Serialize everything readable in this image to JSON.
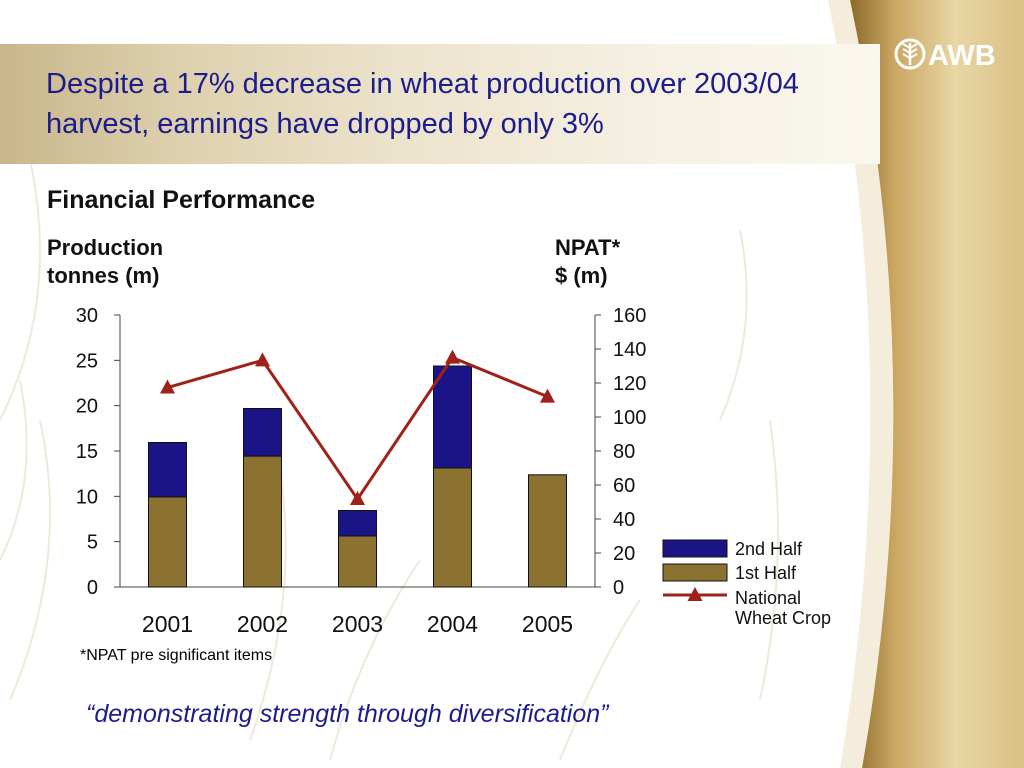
{
  "slide": {
    "headline": "Despite a 17% decrease in wheat production over 2003/04 harvest, earnings have dropped by only 3%",
    "logo_text": "AWB",
    "footnote": "*NPAT pre significant items",
    "tagline": "“demonstrating strength through diversification”"
  },
  "colors": {
    "headline": "#1c1c8c",
    "second_half": "#1a1486",
    "first_half": "#8b7230",
    "line": "#a0201a",
    "gold_swoosh": "#c9a560"
  },
  "chart_data": {
    "type": "bar",
    "title": "Financial Performance",
    "left_axis_label": [
      "Production",
      "tonnes (m)"
    ],
    "right_axis_label": [
      "NPAT*",
      "$ (m)"
    ],
    "categories": [
      "2001",
      "2002",
      "2003",
      "2004",
      "2005"
    ],
    "stacked": true,
    "ylim_left": [
      0,
      30
    ],
    "yticks_left": [
      "0",
      "5",
      "10",
      "15",
      "20",
      "25",
      "30"
    ],
    "ylim_right": [
      0,
      160
    ],
    "yticks_right": [
      "0",
      "20",
      "40",
      "60",
      "80",
      "100",
      "120",
      "140",
      "160"
    ],
    "series": [
      {
        "name": "2nd Half",
        "axis": "right",
        "kind": "bar",
        "values": [
          32,
          28,
          15,
          60,
          0
        ]
      },
      {
        "name": "1st Half",
        "axis": "right",
        "kind": "bar",
        "values": [
          53,
          77,
          30,
          70,
          66
        ]
      },
      {
        "name": "National Wheat Crop",
        "axis": "left",
        "kind": "line",
        "values": [
          22,
          25,
          9.7,
          25.3,
          21
        ]
      }
    ],
    "legend": {
      "position": "bottom-right",
      "items": [
        {
          "label": "2nd Half",
          "swatch": "box",
          "color": "#1a1486"
        },
        {
          "label": "1st Half",
          "swatch": "box",
          "color": "#8b7230"
        },
        {
          "label": "National Wheat Crop",
          "lines": [
            "National",
            "Wheat Crop"
          ],
          "swatch": "line-triangle",
          "color": "#a0201a"
        }
      ]
    }
  }
}
